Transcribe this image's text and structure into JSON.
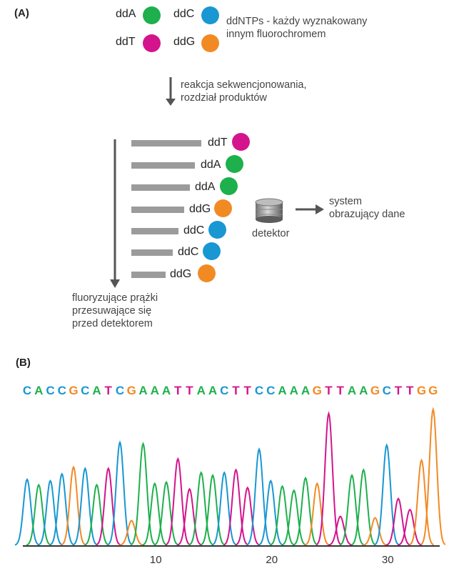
{
  "panel_a_label": "(A)",
  "panel_b_label": "(B)",
  "colors": {
    "A": "#1db04c",
    "C": "#1897d3",
    "T": "#d4148d",
    "G": "#f28a24"
  },
  "legend": [
    {
      "label": "ddA",
      "base": "A"
    },
    {
      "label": "ddC",
      "base": "C"
    },
    {
      "label": "ddT",
      "base": "T"
    },
    {
      "label": "ddG",
      "base": "G"
    }
  ],
  "ddntp_note_line1": "ddNTPs - każdy wyznakowany",
  "ddntp_note_line2": "innym fluorochromem",
  "reaction_line1": "reakcja sekwencjonowania,",
  "reaction_line2": "rozdział produktów",
  "fragments": [
    {
      "label": "ddT",
      "base": "T"
    },
    {
      "label": "ddA",
      "base": "A"
    },
    {
      "label": "ddA",
      "base": "A"
    },
    {
      "label": "ddG",
      "base": "G"
    },
    {
      "label": "ddC",
      "base": "C"
    },
    {
      "label": "ddC",
      "base": "C"
    },
    {
      "label": "ddG",
      "base": "G"
    }
  ],
  "bands_line1": "fluoryzujące prążki",
  "bands_line2": "przesuwające się",
  "bands_line3": "przed detektorem",
  "detector_label": "detektor",
  "system_line1": "system",
  "system_line2": "obrazujący dane",
  "chart_data": {
    "type": "line",
    "sequence": "CACCGCATCGAAATTAACTTCCAAAGTTAAGCTTGG",
    "x_ticks": [
      10,
      20,
      30
    ],
    "peaks": [
      {
        "pos": 1,
        "base": "C",
        "height": 0.48
      },
      {
        "pos": 2,
        "base": "A",
        "height": 0.44
      },
      {
        "pos": 3,
        "base": "C",
        "height": 0.47
      },
      {
        "pos": 4,
        "base": "C",
        "height": 0.52
      },
      {
        "pos": 5,
        "base": "G",
        "height": 0.57
      },
      {
        "pos": 6,
        "base": "C",
        "height": 0.56
      },
      {
        "pos": 7,
        "base": "A",
        "height": 0.44
      },
      {
        "pos": 8,
        "base": "T",
        "height": 0.56
      },
      {
        "pos": 9,
        "base": "C",
        "height": 0.75
      },
      {
        "pos": 10,
        "base": "G",
        "height": 0.18
      },
      {
        "pos": 11,
        "base": "A",
        "height": 0.74
      },
      {
        "pos": 12,
        "base": "A",
        "height": 0.45
      },
      {
        "pos": 13,
        "base": "A",
        "height": 0.46
      },
      {
        "pos": 14,
        "base": "T",
        "height": 0.63
      },
      {
        "pos": 15,
        "base": "T",
        "height": 0.41
      },
      {
        "pos": 16,
        "base": "A",
        "height": 0.53
      },
      {
        "pos": 17,
        "base": "A",
        "height": 0.51
      },
      {
        "pos": 18,
        "base": "C",
        "height": 0.53
      },
      {
        "pos": 19,
        "base": "T",
        "height": 0.55
      },
      {
        "pos": 20,
        "base": "T",
        "height": 0.42
      },
      {
        "pos": 21,
        "base": "C",
        "height": 0.7
      },
      {
        "pos": 22,
        "base": "C",
        "height": 0.47
      },
      {
        "pos": 23,
        "base": "A",
        "height": 0.43
      },
      {
        "pos": 24,
        "base": "A",
        "height": 0.4
      },
      {
        "pos": 25,
        "base": "A",
        "height": 0.49
      },
      {
        "pos": 26,
        "base": "G",
        "height": 0.45
      },
      {
        "pos": 27,
        "base": "T",
        "height": 0.96
      },
      {
        "pos": 28,
        "base": "T",
        "height": 0.21
      },
      {
        "pos": 29,
        "base": "A",
        "height": 0.51
      },
      {
        "pos": 30,
        "base": "A",
        "height": 0.55
      },
      {
        "pos": 31,
        "base": "G",
        "height": 0.2
      },
      {
        "pos": 32,
        "base": "C",
        "height": 0.73
      },
      {
        "pos": 33,
        "base": "T",
        "height": 0.34
      },
      {
        "pos": 34,
        "base": "T",
        "height": 0.26
      },
      {
        "pos": 35,
        "base": "G",
        "height": 0.62
      },
      {
        "pos": 36,
        "base": "G",
        "height": 0.99
      }
    ]
  }
}
